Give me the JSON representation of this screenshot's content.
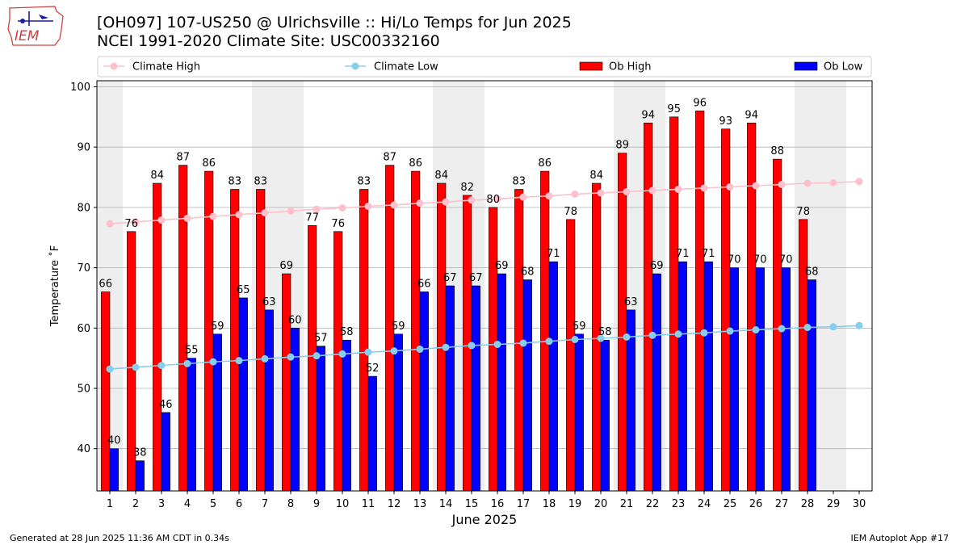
{
  "header": {
    "title_line1": "[OH097] 107-US250 @ Ulrichsville :: Hi/Lo Temps for Jun 2025",
    "title_line2": "NCEI 1991-2020 Climate Site: USC00332160",
    "logo_text": "IEM"
  },
  "footer": {
    "generated": "Generated at 28 Jun 2025 11:36 AM CDT in 0.34s",
    "app": "IEM Autoplot App #17"
  },
  "chart_data": {
    "type": "bar",
    "xlabel": "June 2025",
    "ylabel": "Temperature ˚F",
    "ylim": [
      33,
      101
    ],
    "xlim": [
      0.5,
      30.5
    ],
    "yticks": [
      40,
      50,
      60,
      70,
      80,
      90,
      100
    ],
    "grid": "horizontal",
    "legend_position": "top",
    "weekend_shading": [
      [
        1,
        1
      ],
      [
        7,
        8
      ],
      [
        14,
        15
      ],
      [
        21,
        22
      ],
      [
        28,
        29
      ]
    ],
    "categories": [
      "1",
      "2",
      "3",
      "4",
      "5",
      "6",
      "7",
      "8",
      "9",
      "10",
      "11",
      "12",
      "13",
      "14",
      "15",
      "16",
      "17",
      "18",
      "19",
      "20",
      "21",
      "22",
      "23",
      "24",
      "25",
      "26",
      "27",
      "28",
      "29",
      "30"
    ],
    "series": [
      {
        "name": "Climate High",
        "kind": "line",
        "color": "#ffc0cb",
        "values": [
          77.3,
          77.6,
          77.9,
          78.2,
          78.5,
          78.8,
          79.1,
          79.4,
          79.7,
          79.9,
          80.2,
          80.4,
          80.7,
          80.9,
          81.2,
          81.4,
          81.7,
          81.9,
          82.2,
          82.4,
          82.6,
          82.8,
          83.0,
          83.2,
          83.4,
          83.6,
          83.8,
          84.0,
          84.1,
          84.3
        ]
      },
      {
        "name": "Climate Low",
        "kind": "line",
        "color": "#87ceeb",
        "values": [
          53.2,
          53.5,
          53.8,
          54.1,
          54.4,
          54.6,
          54.9,
          55.2,
          55.4,
          55.7,
          56.0,
          56.2,
          56.5,
          56.8,
          57.1,
          57.3,
          57.5,
          57.8,
          58.1,
          58.3,
          58.5,
          58.8,
          59.0,
          59.2,
          59.5,
          59.7,
          59.9,
          60.1,
          60.2,
          60.4
        ]
      },
      {
        "name": "Ob High",
        "kind": "bar",
        "color": "#ff0000",
        "values": [
          66,
          76,
          84,
          87,
          86,
          83,
          83,
          69,
          77,
          76,
          83,
          87,
          86,
          84,
          82,
          80,
          83,
          86,
          78,
          84,
          89,
          94,
          95,
          96,
          93,
          94,
          88,
          78,
          null,
          null
        ]
      },
      {
        "name": "Ob Low",
        "kind": "bar",
        "color": "#0000ff",
        "values": [
          40,
          38,
          46,
          55,
          59,
          65,
          63,
          60,
          57,
          58,
          52,
          59,
          66,
          67,
          67,
          69,
          68,
          71,
          59,
          58,
          63,
          69,
          71,
          71,
          70,
          70,
          70,
          68,
          null,
          null
        ]
      }
    ]
  }
}
